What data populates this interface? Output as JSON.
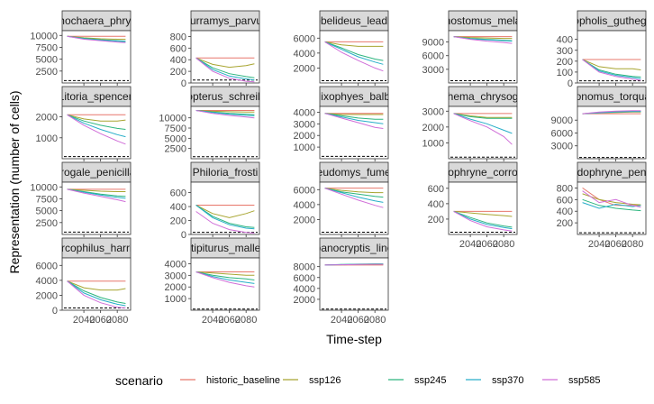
{
  "chart_data": {
    "type": "line",
    "xlabel": "Time-step",
    "ylabel": "Representation (number of cells)",
    "x": [
      2020,
      2040,
      2060,
      2080,
      2090
    ],
    "xlim": [
      2014,
      2096
    ],
    "x_ticks": [
      2040,
      2060,
      2080
    ],
    "x_tick_labels": [
      "2040",
      "2060",
      "2080"
    ],
    "threshold_style": "dashed",
    "colors": {
      "historic_baseline": "#e7776b",
      "ssp126": "#a8a530",
      "ssp245": "#2cb57e",
      "ssp370": "#27aec9",
      "ssp585": "#d06ed8"
    },
    "legend": {
      "title": "scenario",
      "position": "bottom",
      "entries": [
        "historic_baseline",
        "ssp126",
        "ssp245",
        "ssp370",
        "ssp585"
      ]
    },
    "panels": [
      {
        "title": "thochaera_phryg",
        "ylim": [
          0,
          11000
        ],
        "yticks": [
          2500,
          5000,
          7500,
          10000
        ],
        "threshold": 500,
        "series": {
          "historic_baseline": [
            9800,
            9800,
            9800,
            9800,
            9800
          ],
          "ssp126": [
            9800,
            9500,
            9300,
            9200,
            9200
          ],
          "ssp245": [
            9800,
            9400,
            9100,
            8900,
            8800
          ],
          "ssp370": [
            9800,
            9300,
            9000,
            8800,
            8700
          ],
          "ssp585": [
            9800,
            9200,
            8900,
            8600,
            8500
          ]
        }
      },
      {
        "title": "Burramys_parvus",
        "ylim": [
          0,
          900
        ],
        "yticks": [
          0,
          200,
          400,
          600,
          800
        ],
        "threshold": 50,
        "series": {
          "historic_baseline": [
            430,
            430,
            430,
            430,
            430
          ],
          "ssp126": [
            430,
            320,
            270,
            300,
            330
          ],
          "ssp245": [
            430,
            260,
            160,
            110,
            90
          ],
          "ssp370": [
            430,
            230,
            120,
            70,
            50
          ],
          "ssp585": [
            430,
            200,
            80,
            30,
            20
          ]
        }
      },
      {
        "title": "obelideus_leadb",
        "ylim": [
          0,
          7000
        ],
        "yticks": [
          2000,
          4000,
          6000
        ],
        "threshold": 300,
        "series": {
          "historic_baseline": [
            5500,
            5500,
            5500,
            5500,
            5500
          ],
          "ssp126": [
            5500,
            5100,
            4900,
            4900,
            4900
          ],
          "ssp245": [
            5500,
            4700,
            3800,
            3200,
            3000
          ],
          "ssp370": [
            5500,
            4500,
            3500,
            2800,
            2500
          ],
          "ssp585": [
            5500,
            4100,
            3000,
            2000,
            1600
          ]
        }
      },
      {
        "title": "nostomus_mela",
        "ylim": [
          0,
          11500
        ],
        "yticks": [
          3000,
          6000,
          9000
        ],
        "threshold": 500,
        "series": {
          "historic_baseline": [
            10200,
            10200,
            10200,
            10200,
            10200
          ],
          "ssp126": [
            10200,
            10000,
            9900,
            9800,
            9800
          ],
          "ssp245": [
            10200,
            9800,
            9600,
            9400,
            9300
          ],
          "ssp370": [
            10200,
            9700,
            9500,
            9300,
            9200
          ],
          "ssp585": [
            10200,
            9600,
            9200,
            8900,
            8700
          ]
        }
      },
      {
        "title": "iopholis_guthega",
        "ylim": [
          0,
          480
        ],
        "yticks": [
          0,
          100,
          200,
          300,
          400
        ],
        "threshold": 20,
        "series": {
          "historic_baseline": [
            215,
            215,
            215,
            215,
            215
          ],
          "ssp126": [
            215,
            150,
            130,
            130,
            120
          ],
          "ssp245": [
            215,
            120,
            80,
            60,
            55
          ],
          "ssp370": [
            215,
            110,
            70,
            50,
            40
          ],
          "ssp585": [
            215,
            100,
            60,
            35,
            25
          ]
        }
      },
      {
        "title": "Litoria_spenceri",
        "ylim": [
          0,
          2500
        ],
        "yticks": [
          1000,
          2000
        ],
        "threshold": 100,
        "series": {
          "historic_baseline": [
            2100,
            2100,
            2100,
            2100,
            2100
          ],
          "ssp126": [
            2100,
            1900,
            1800,
            1800,
            1850
          ],
          "ssp245": [
            2100,
            1800,
            1600,
            1450,
            1400
          ],
          "ssp370": [
            2100,
            1700,
            1400,
            1150,
            1050
          ],
          "ssp585": [
            2100,
            1600,
            1200,
            850,
            700
          ]
        }
      },
      {
        "title": "opterus_schreib",
        "ylim": [
          0,
          12800
        ],
        "yticks": [
          2500,
          5000,
          7500,
          10000
        ],
        "threshold": 500,
        "series": {
          "historic_baseline": [
            11800,
            11800,
            11800,
            11800,
            11800
          ],
          "ssp126": [
            11800,
            11600,
            11500,
            11400,
            11400
          ],
          "ssp245": [
            11800,
            11400,
            11100,
            10900,
            10800
          ],
          "ssp370": [
            11800,
            11300,
            10900,
            10600,
            10500
          ],
          "ssp585": [
            11800,
            11100,
            10600,
            10200,
            10000
          ]
        }
      },
      {
        "title": "Mixophyes_balbu",
        "ylim": [
          0,
          4500
        ],
        "yticks": [
          1000,
          2000,
          3000,
          4000
        ],
        "threshold": 200,
        "series": {
          "historic_baseline": [
            3900,
            3900,
            3900,
            3900,
            3900
          ],
          "ssp126": [
            3900,
            3800,
            3800,
            3800,
            3800
          ],
          "ssp245": [
            3900,
            3700,
            3500,
            3400,
            3400
          ],
          "ssp370": [
            3900,
            3600,
            3300,
            3100,
            3000
          ],
          "ssp585": [
            3900,
            3500,
            3100,
            2700,
            2600
          ]
        }
      },
      {
        "title": "phema_chrysoga",
        "ylim": [
          0,
          3300
        ],
        "yticks": [
          1000,
          2000,
          3000
        ],
        "threshold": 100,
        "series": {
          "historic_baseline": [
            2850,
            2850,
            2850,
            2850,
            2850
          ],
          "ssp126": [
            2850,
            2700,
            2600,
            2600,
            2600
          ],
          "ssp245": [
            2850,
            2650,
            2550,
            2550,
            2550
          ],
          "ssp370": [
            2850,
            2500,
            2200,
            1800,
            1600
          ],
          "ssp585": [
            2850,
            2400,
            2000,
            1400,
            900
          ]
        }
      },
      {
        "title": "ionomus_torqua",
        "ylim": [
          0,
          12200
        ],
        "yticks": [
          3000,
          6000,
          9000
        ],
        "threshold": 300,
        "series": {
          "historic_baseline": [
            10500,
            10500,
            10500,
            10500,
            10500
          ],
          "ssp126": [
            10500,
            10700,
            10800,
            10900,
            10900
          ],
          "ssp245": [
            10500,
            10800,
            11000,
            11100,
            11100
          ],
          "ssp370": [
            10500,
            10700,
            10900,
            11000,
            11000
          ],
          "ssp585": [
            10500,
            10900,
            11100,
            11200,
            11200
          ]
        }
      },
      {
        "title": "trogale_penicilla",
        "ylim": [
          0,
          11000
        ],
        "yticks": [
          2500,
          5000,
          7500,
          10000
        ],
        "threshold": 500,
        "series": {
          "historic_baseline": [
            9500,
            9500,
            9500,
            9500,
            9500
          ],
          "ssp126": [
            9500,
            9300,
            9100,
            9000,
            9000
          ],
          "ssp245": [
            9500,
            9000,
            8500,
            8100,
            8000
          ],
          "ssp370": [
            9500,
            8900,
            8300,
            7800,
            7600
          ],
          "ssp585": [
            9500,
            8700,
            8000,
            7300,
            6900
          ]
        }
      },
      {
        "title": "Philoria_frosti",
        "ylim": [
          0,
          750
        ],
        "yticks": [
          0,
          200,
          400,
          600
        ],
        "threshold": 30,
        "series": {
          "historic_baseline": [
            420,
            420,
            420,
            420,
            420
          ],
          "ssp126": [
            420,
            300,
            240,
            300,
            340
          ],
          "ssp245": [
            420,
            260,
            160,
            110,
            100
          ],
          "ssp370": [
            420,
            240,
            140,
            90,
            80
          ],
          "ssp585": [
            330,
            160,
            70,
            30,
            20
          ]
        }
      },
      {
        "title": "seudomys_fumeu",
        "ylim": [
          0,
          7000
        ],
        "yticks": [
          2000,
          4000,
          6000
        ],
        "threshold": 300,
        "series": {
          "historic_baseline": [
            6200,
            6200,
            6200,
            6200,
            6200
          ],
          "ssp126": [
            6200,
            5900,
            5700,
            5600,
            5600
          ],
          "ssp245": [
            6200,
            5700,
            5400,
            5100,
            5000
          ],
          "ssp370": [
            6200,
            5600,
            5000,
            4500,
            4300
          ],
          "ssp585": [
            6200,
            5400,
            4600,
            3900,
            3600
          ]
        }
      },
      {
        "title": "dophryne_corrob",
        "ylim": [
          0,
          680
        ],
        "yticks": [
          200,
          400,
          600
        ],
        "threshold": 30,
        "series": {
          "historic_baseline": [
            300,
            300,
            300,
            300,
            300
          ],
          "ssp126": [
            300,
            280,
            260,
            245,
            235
          ],
          "ssp245": [
            300,
            220,
            150,
            110,
            95
          ],
          "ssp370": [
            300,
            200,
            130,
            90,
            75
          ],
          "ssp585": [
            300,
            180,
            100,
            60,
            45
          ]
        }
      },
      {
        "title": "udophryne_peng",
        "ylim": [
          0,
          900
        ],
        "yticks": [
          200,
          400,
          600,
          800
        ],
        "threshold": 30,
        "series": {
          "historic_baseline": [
            800,
            600,
            500,
            500,
            500
          ],
          "ssp126": [
            700,
            600,
            550,
            520,
            510
          ],
          "ssp245": [
            600,
            500,
            450,
            420,
            410
          ],
          "ssp370": [
            550,
            450,
            520,
            480,
            500
          ],
          "ssp585": [
            750,
            550,
            600,
            500,
            470
          ]
        }
      },
      {
        "title": "arcophilus_harris",
        "ylim": [
          0,
          7000
        ],
        "yticks": [
          0,
          2000,
          4000,
          6000
        ],
        "threshold": 300,
        "series": {
          "historic_baseline": [
            3900,
            3900,
            3900,
            3900,
            3900
          ],
          "ssp126": [
            3900,
            3000,
            2700,
            2700,
            2900
          ],
          "ssp245": [
            3900,
            2600,
            1700,
            1100,
            900
          ],
          "ssp370": [
            3900,
            2300,
            1400,
            800,
            600
          ],
          "ssp585": [
            3900,
            2000,
            1000,
            400,
            300
          ]
        }
      },
      {
        "title": "Stipiturus_mallee",
        "ylim": [
          0,
          4500
        ],
        "yticks": [
          1000,
          2000,
          3000,
          4000
        ],
        "threshold": 100,
        "series": {
          "historic_baseline": [
            3300,
            3300,
            3300,
            3300,
            3300
          ],
          "ssp126": [
            3300,
            3200,
            3100,
            3000,
            3000
          ],
          "ssp245": [
            3300,
            3000,
            2800,
            2700,
            2600
          ],
          "ssp370": [
            3300,
            2900,
            2600,
            2400,
            2300
          ],
          "ssp585": [
            3300,
            2800,
            2400,
            2100,
            2000
          ]
        }
      },
      {
        "title": "panocryptis_line",
        "ylim": [
          0,
          9600
        ],
        "yticks": [
          2000,
          4000,
          6000,
          8000
        ],
        "threshold": 200,
        "series": {
          "historic_baseline": [
            8300,
            8300,
            8300,
            8300,
            8300
          ],
          "ssp126": [
            8300,
            8350,
            8400,
            8400,
            8400
          ],
          "ssp245": [
            8300,
            8400,
            8450,
            8500,
            8500
          ],
          "ssp370": [
            8300,
            8380,
            8420,
            8450,
            8450
          ],
          "ssp585": [
            8300,
            8350,
            8400,
            8420,
            8420
          ]
        }
      }
    ]
  }
}
